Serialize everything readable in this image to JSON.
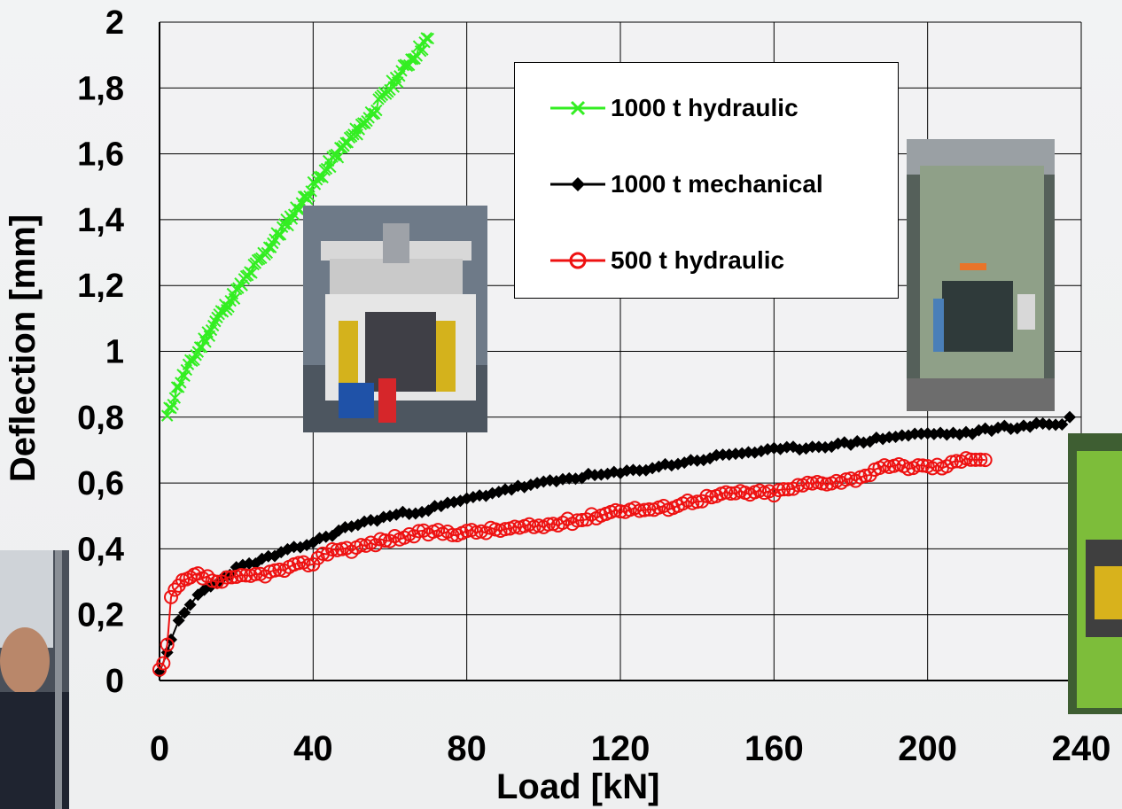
{
  "chart_data": {
    "type": "line",
    "xlabel": "Load [kN]",
    "ylabel": "Deflection [mm]",
    "xlim": [
      0,
      240
    ],
    "ylim": [
      0,
      2
    ],
    "x_ticks": [
      "0",
      "40",
      "80",
      "120",
      "160",
      "200",
      "240"
    ],
    "y_ticks": [
      "0",
      "0,2",
      "0,4",
      "0,6",
      "0,8",
      "1",
      "1,2",
      "1,4",
      "1,6",
      "1,8",
      "2"
    ],
    "grid": true,
    "legend_position": "top-right",
    "series": [
      {
        "name": "1000 t hydraulic",
        "color": "#33ee22",
        "marker": "x",
        "x": [
          2,
          5,
          10,
          15,
          20,
          25,
          30,
          35,
          40,
          45,
          50,
          55,
          60,
          65,
          70
        ],
        "y": [
          0.8,
          0.9,
          1.0,
          1.1,
          1.18,
          1.26,
          1.34,
          1.42,
          1.5,
          1.58,
          1.65,
          1.72,
          1.8,
          1.88,
          1.95
        ]
      },
      {
        "name": "1000 t mechanical",
        "color": "#000000",
        "marker": "diamond",
        "x": [
          0,
          2,
          3,
          5,
          8,
          10,
          15,
          20,
          30,
          40,
          50,
          60,
          70,
          80,
          90,
          100,
          110,
          120,
          130,
          140,
          150,
          160,
          170,
          180,
          190,
          200,
          205,
          210,
          215,
          220,
          225,
          230,
          235,
          237
        ],
        "y": [
          0.03,
          0.08,
          0.12,
          0.18,
          0.23,
          0.26,
          0.3,
          0.34,
          0.38,
          0.42,
          0.47,
          0.5,
          0.52,
          0.55,
          0.58,
          0.6,
          0.62,
          0.63,
          0.65,
          0.67,
          0.69,
          0.7,
          0.71,
          0.72,
          0.74,
          0.75,
          0.75,
          0.75,
          0.76,
          0.77,
          0.77,
          0.78,
          0.78,
          0.8
        ]
      },
      {
        "name": "500 t hydraulic",
        "color": "#ee1111",
        "marker": "circle",
        "x": [
          0,
          1,
          2,
          3,
          5,
          8,
          10,
          15,
          20,
          25,
          30,
          40,
          45,
          50,
          60,
          70,
          80,
          90,
          100,
          110,
          120,
          130,
          140,
          150,
          160,
          170,
          180,
          190,
          200,
          205,
          210,
          215
        ],
        "y": [
          0.03,
          0.05,
          0.1,
          0.25,
          0.29,
          0.31,
          0.32,
          0.3,
          0.31,
          0.32,
          0.33,
          0.36,
          0.4,
          0.4,
          0.43,
          0.45,
          0.45,
          0.46,
          0.47,
          0.49,
          0.52,
          0.52,
          0.55,
          0.57,
          0.57,
          0.6,
          0.61,
          0.65,
          0.65,
          0.65,
          0.68,
          0.67
        ]
      }
    ]
  },
  "images": {
    "hydraulic_press_1000t": "hydraulic-press-photo",
    "mechanical_press_1000t": "mechanical-press-photo",
    "press_500t_partial": "green-press-photo",
    "operator_partial": "operator-photo"
  }
}
